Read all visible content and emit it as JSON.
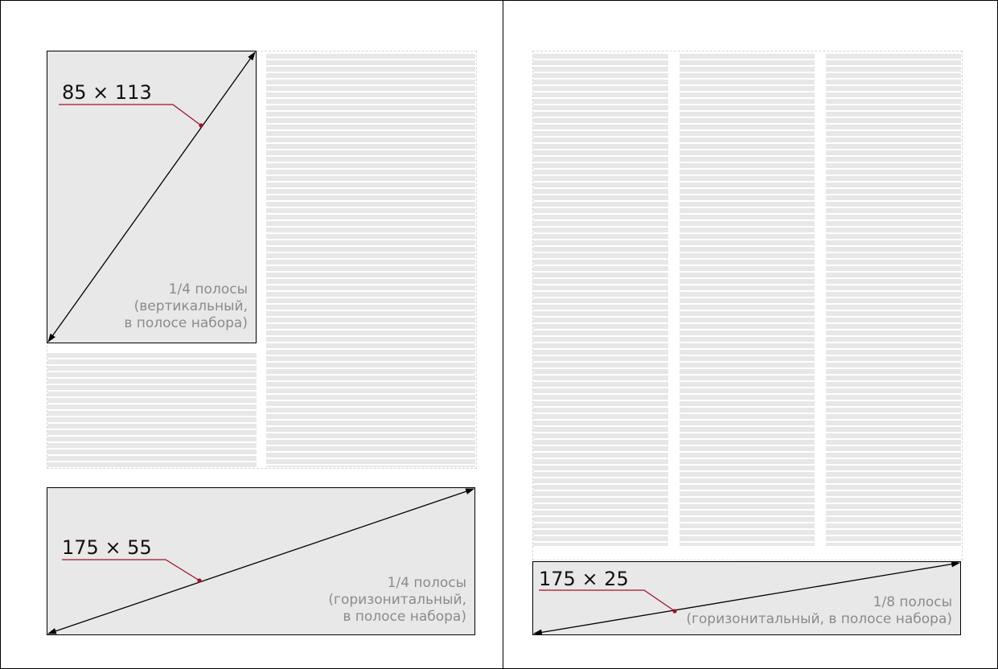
{
  "ads": [
    {
      "size": "85 × 113",
      "caption": [
        "1/4 полосы",
        "(вертикальный,",
        "в полосе набора)"
      ]
    },
    {
      "size": "175 × 55",
      "caption": [
        "1/4 полосы",
        "(горизонитальный,",
        "в полосе набора)"
      ]
    },
    {
      "size": "175 × 25",
      "caption": [
        "1/8 полосы",
        "(горизонитальный, в полосе набора)"
      ]
    }
  ],
  "colors": {
    "ad_fill": "#e8e8e8",
    "text_line": "#e7e7e7",
    "leader": "#a0102a",
    "caption": "#8b8b8b"
  }
}
